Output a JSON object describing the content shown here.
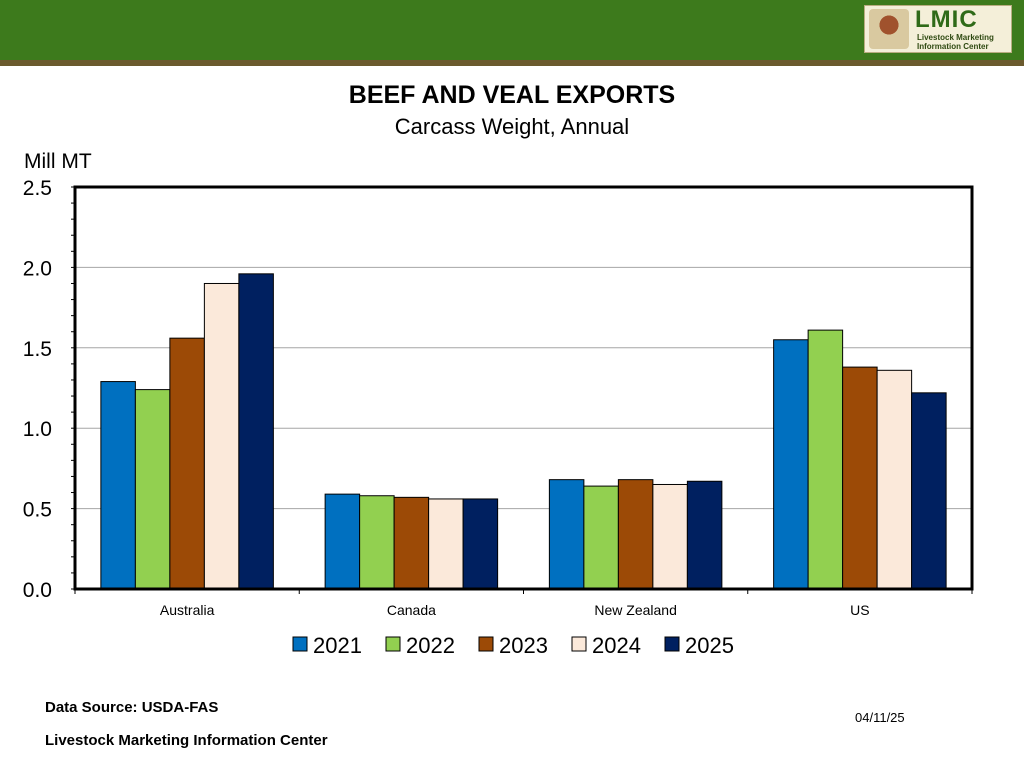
{
  "header": {
    "logo_text": "LMIC",
    "logo_subtitle": "Livestock Marketing Information Center"
  },
  "chart_data": {
    "type": "bar",
    "title": "BEEF AND VEAL EXPORTS",
    "subtitle": "Carcass Weight, Annual",
    "ylabel": "Mill MT",
    "xlabel": "",
    "ylim": [
      0,
      2.5
    ],
    "yticks": [
      "0.0",
      "0.5",
      "1.0",
      "1.5",
      "2.0",
      "2.5"
    ],
    "grid": true,
    "legend_position": "bottom",
    "categories": [
      "Australia",
      "Canada",
      "New Zealand",
      "US"
    ],
    "series": [
      {
        "name": "2021",
        "color": "#0070c0",
        "values": [
          1.29,
          0.59,
          0.68,
          1.55
        ]
      },
      {
        "name": "2022",
        "color": "#92d050",
        "values": [
          1.24,
          0.58,
          0.64,
          1.61
        ]
      },
      {
        "name": "2023",
        "color": "#9c4a06",
        "values": [
          1.56,
          0.57,
          0.68,
          1.38
        ]
      },
      {
        "name": "2024",
        "color": "#fbe9da",
        "values": [
          1.9,
          0.56,
          0.65,
          1.36
        ]
      },
      {
        "name": "2025",
        "color": "#002060",
        "values": [
          1.96,
          0.56,
          0.67,
          1.22
        ]
      }
    ]
  },
  "footer": {
    "source": "Data Source:  USDA-FAS",
    "organization": "Livestock Marketing Information Center",
    "date": "04/11/25"
  }
}
